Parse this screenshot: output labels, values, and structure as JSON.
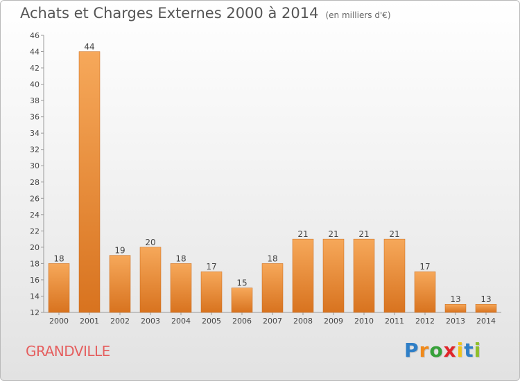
{
  "header": {
    "title": "Achats et Charges Externes 2000 à 2014",
    "subtitle": "(en milliers d'€)"
  },
  "footer": {
    "place": "GRANDVILLE",
    "logo": "Proxiti"
  },
  "colors": {
    "bar_light": "#f6a85a",
    "bar_dark": "#d8731f",
    "place": "#e55f5f",
    "logo_letters": [
      "#2f7fc7",
      "#f08a1c",
      "#37a13a",
      "#e0262a",
      "#f0c419",
      "#2f7fc7",
      "#8fbf2a"
    ]
  },
  "chart_data": {
    "type": "bar",
    "title": "Achats et Charges Externes 2000 à 2014",
    "subtitle": "(en milliers d'€)",
    "categories": [
      "2000",
      "2001",
      "2002",
      "2003",
      "2004",
      "2005",
      "2006",
      "2007",
      "2008",
      "2009",
      "2010",
      "2011",
      "2012",
      "2013",
      "2014"
    ],
    "values": [
      18,
      44,
      19,
      20,
      18,
      17,
      15,
      18,
      21,
      21,
      21,
      21,
      17,
      13,
      13
    ],
    "data_labels": [
      "18",
      "44",
      "19",
      "20",
      "18",
      "17",
      "15",
      "18",
      "21",
      "21",
      "21",
      "21",
      "17",
      "13",
      "13"
    ],
    "yticks": [
      "12",
      "14",
      "16",
      "18",
      "20",
      "22",
      "24",
      "26",
      "28",
      "30",
      "32",
      "34",
      "36",
      "38",
      "40",
      "42",
      "44",
      "46"
    ],
    "ylim": [
      12,
      46
    ],
    "grid": false,
    "legend": "none"
  }
}
